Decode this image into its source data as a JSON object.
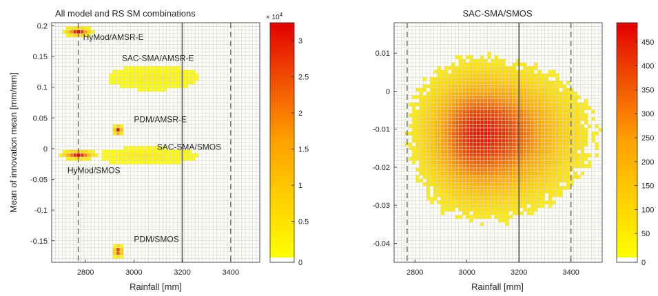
{
  "figure": {
    "background": "#ffffff",
    "grid_color": "#d8d8c8",
    "cell_bg": "#ffffff"
  },
  "chart_data": [
    {
      "type": "heatmap",
      "title": "All model and RS SM combinations",
      "xlabel": "Rainfall [mm]",
      "ylabel": "Mean of innovation mean [mm/mm]",
      "xlim": [
        2660,
        3520
      ],
      "ylim": [
        -0.185,
        0.205
      ],
      "xticks": [
        2800,
        3000,
        3200,
        3400
      ],
      "yticks": [
        0.2,
        0.15,
        0.1,
        0.05,
        0,
        -0.05,
        -0.1,
        -0.15
      ],
      "ytick_labels": [
        "0.2",
        "0.15",
        "0.1",
        "0.05",
        "0",
        "-0.05",
        "-0.1",
        "-0.15"
      ],
      "grid": true,
      "vlines": [
        {
          "x": 2770,
          "style": "dashed"
        },
        {
          "x": 3200,
          "style": "solid"
        },
        {
          "x": 3400,
          "style": "dashed"
        }
      ],
      "clusters": [
        {
          "label": "HyMod/AMSR-E",
          "x_range": [
            2700,
            2830
          ],
          "y_range": [
            0.183,
            0.2
          ],
          "center": [
            2770,
            0.19
          ],
          "peak": 32000,
          "label_pos": [
            2790,
            0.177
          ]
        },
        {
          "label": "SAC-SMA/AMSR-E",
          "x_range": [
            2900,
            3260
          ],
          "y_range": [
            0.095,
            0.133
          ],
          "center": [
            3080,
            0.115
          ],
          "peak": 2500,
          "label_pos": [
            2950,
            0.143
          ]
        },
        {
          "label": "PDM/AMSR-E",
          "x_range": [
            2910,
            2960
          ],
          "y_range": [
            0.02,
            0.04
          ],
          "center": [
            2935,
            0.03
          ],
          "peak": 30000,
          "label_pos": [
            3000,
            0.043
          ]
        },
        {
          "label": "SAC-SMA/SMOS",
          "x_range": [
            2880,
            3280
          ],
          "y_range": [
            -0.027,
            0.0
          ],
          "center": [
            3050,
            -0.012
          ],
          "peak": 3000,
          "label_pos": [
            3095,
            -0.002
          ]
        },
        {
          "label": "HyMod/SMOS",
          "x_range": [
            2700,
            2860
          ],
          "y_range": [
            -0.018,
            -0.002
          ],
          "center": [
            2770,
            -0.01
          ],
          "peak": 32000,
          "label_pos": [
            2725,
            -0.04
          ]
        },
        {
          "label": "PDM/SMOS",
          "x_range": [
            2910,
            2960
          ],
          "y_range": [
            -0.178,
            -0.155
          ],
          "center": [
            2935,
            -0.167
          ],
          "peak": 30000,
          "label_pos": [
            3000,
            -0.152
          ]
        }
      ],
      "colorbar": {
        "min": 0,
        "max": 32500,
        "ticks": [
          0,
          0.5,
          1,
          1.5,
          2,
          2.5,
          3
        ],
        "tick_labels": [
          "0",
          "0.5",
          "1",
          "1.5",
          "2",
          "2.5",
          "3"
        ],
        "multiplier_label": "× 10",
        "multiplier_exp": "4"
      }
    },
    {
      "type": "heatmap",
      "title": "SAC-SMA/SMOS",
      "xlabel": "Rainfall [mm]",
      "ylabel": "",
      "xlim": [
        2720,
        3520
      ],
      "ylim": [
        -0.045,
        0.018
      ],
      "xticks": [
        2800,
        3000,
        3200,
        3400
      ],
      "yticks": [
        0.01,
        0,
        -0.01,
        -0.02,
        -0.03,
        -0.04
      ],
      "ytick_labels": [
        "0.01",
        "0",
        "-0.01",
        "-0.02",
        "-0.03",
        "-0.04"
      ],
      "grid": true,
      "vlines": [
        {
          "x": 2770,
          "style": "dashed"
        },
        {
          "x": 3200,
          "style": "solid"
        },
        {
          "x": 3400,
          "style": "dashed"
        }
      ],
      "blob": {
        "center": [
          3050,
          -0.011
        ],
        "x_range": [
          2780,
          3480
        ],
        "y_range": [
          -0.034,
          0.009
        ],
        "peak": 460
      },
      "colorbar": {
        "min": 0,
        "max": 490,
        "ticks": [
          0,
          50,
          100,
          150,
          200,
          250,
          300,
          350,
          400,
          450
        ],
        "tick_labels": [
          "0",
          "50",
          "100",
          "150",
          "200",
          "250",
          "300",
          "350",
          "400",
          "450"
        ]
      }
    }
  ]
}
